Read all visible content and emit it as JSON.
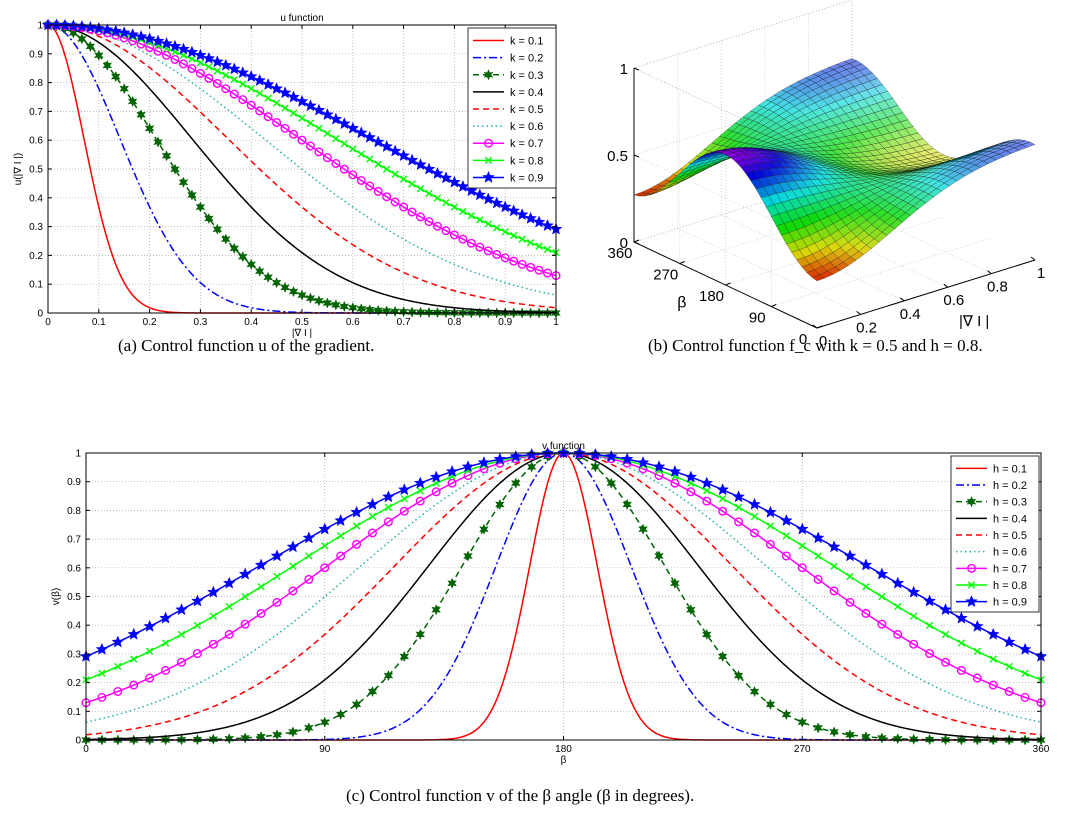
{
  "captions": {
    "a": "(a) Control function u of the gradient.",
    "b": "(b) Control function f_c with k = 0.5 and h = 0.8.",
    "c": "(c) Control function v of the β angle (β in degrees)."
  },
  "chart_data": [
    {
      "id": "a",
      "type": "line",
      "title": "u function",
      "xlabel": "|∇ I |",
      "ylabel": "u(|∇ I |)",
      "xlim": [
        0,
        1
      ],
      "ylim": [
        0,
        1
      ],
      "xticks": [
        "0",
        "0.1",
        "0.2",
        "0.3",
        "0.4",
        "0.5",
        "0.6",
        "0.7",
        "0.8",
        "0.9",
        "1"
      ],
      "yticks": [
        "0",
        "0.1",
        "0.2",
        "0.3",
        "0.4",
        "0.5",
        "0.6",
        "0.7",
        "0.8",
        "0.9",
        "1"
      ],
      "grid": true,
      "legend_position": "top-right",
      "function": "exp(-(x/k)^2)",
      "x": [
        0,
        0.05,
        0.1,
        0.15,
        0.2,
        0.25,
        0.3,
        0.35,
        0.4,
        0.45,
        0.5,
        0.55,
        0.6,
        0.65,
        0.7,
        0.75,
        0.8,
        0.85,
        0.9,
        0.95,
        1
      ],
      "series": [
        {
          "name": "k = 0.1",
          "color": "#ff0000",
          "dash": "solid",
          "marker": "none",
          "values": [
            1,
            0.779,
            0.368,
            0.105,
            0.018,
            0.002,
            0,
            0,
            0,
            0,
            0,
            0,
            0,
            0,
            0,
            0,
            0,
            0,
            0,
            0,
            0
          ]
        },
        {
          "name": "k = 0.2",
          "color": "#0000ff",
          "dash": "dashdot",
          "marker": "none",
          "values": [
            1,
            0.939,
            0.779,
            0.57,
            0.368,
            0.21,
            0.105,
            0.047,
            0.018,
            0.006,
            0.002,
            0.001,
            0,
            0,
            0,
            0,
            0,
            0,
            0,
            0,
            0
          ]
        },
        {
          "name": "k = 0.3",
          "color": "#006400",
          "dash": "dashed",
          "marker": "star6",
          "values": [
            1,
            0.973,
            0.895,
            0.779,
            0.641,
            0.499,
            0.368,
            0.256,
            0.169,
            0.105,
            0.062,
            0.035,
            0.018,
            0.009,
            0.004,
            0.002,
            0.001,
            0,
            0,
            0,
            0
          ]
        },
        {
          "name": "k = 0.4",
          "color": "#000000",
          "dash": "solid",
          "marker": "none",
          "values": [
            1,
            0.985,
            0.939,
            0.869,
            0.779,
            0.677,
            0.57,
            0.465,
            0.368,
            0.282,
            0.21,
            0.151,
            0.105,
            0.071,
            0.047,
            0.03,
            0.018,
            0.011,
            0.006,
            0.004,
            0.002
          ]
        },
        {
          "name": "k = 0.5",
          "color": "#ff0000",
          "dash": "dashed",
          "marker": "none",
          "values": [
            1,
            0.99,
            0.961,
            0.914,
            0.852,
            0.779,
            0.698,
            0.613,
            0.527,
            0.445,
            0.368,
            0.298,
            0.237,
            0.185,
            0.141,
            0.105,
            0.077,
            0.056,
            0.039,
            0.027,
            0.018
          ]
        },
        {
          "name": "k = 0.6",
          "color": "#20b2aa",
          "dash": "dotted",
          "marker": "none",
          "values": [
            1,
            0.993,
            0.973,
            0.939,
            0.895,
            0.841,
            0.779,
            0.712,
            0.641,
            0.57,
            0.499,
            0.432,
            0.368,
            0.309,
            0.256,
            0.21,
            0.169,
            0.134,
            0.105,
            0.082,
            0.062
          ]
        },
        {
          "name": "k = 0.7",
          "color": "#ff00ff",
          "dash": "solid",
          "marker": "circle",
          "values": [
            1,
            0.995,
            0.98,
            0.955,
            0.922,
            0.879,
            0.832,
            0.779,
            0.721,
            0.662,
            0.6,
            0.539,
            0.48,
            0.422,
            0.368,
            0.317,
            0.271,
            0.229,
            0.192,
            0.159,
            0.13
          ]
        },
        {
          "name": "k = 0.8",
          "color": "#00ff00",
          "dash": "solid",
          "marker": "x",
          "values": [
            1,
            0.996,
            0.985,
            0.965,
            0.939,
            0.907,
            0.869,
            0.826,
            0.779,
            0.729,
            0.677,
            0.624,
            0.57,
            0.517,
            0.465,
            0.415,
            0.368,
            0.323,
            0.282,
            0.244,
            0.21
          ]
        },
        {
          "name": "k = 0.9",
          "color": "#0000ff",
          "dash": "solid",
          "marker": "star5",
          "values": [
            1,
            0.997,
            0.988,
            0.973,
            0.952,
            0.926,
            0.895,
            0.86,
            0.821,
            0.779,
            0.734,
            0.688,
            0.641,
            0.594,
            0.546,
            0.499,
            0.454,
            0.41,
            0.368,
            0.328,
            0.291
          ]
        }
      ]
    },
    {
      "id": "b",
      "type": "surface",
      "title": "",
      "xlabel": "|∇ I |",
      "ylabel": "β",
      "zlabel": "",
      "x_range": [
        0,
        1
      ],
      "y_range": [
        0,
        360
      ],
      "z_range": [
        0,
        1
      ],
      "xticks": [
        "0",
        "0.2",
        "0.4",
        "0.6",
        "0.8",
        "1"
      ],
      "yticks": [
        "0",
        "90",
        "180",
        "270",
        "360"
      ],
      "zticks": [
        "0",
        "0.5",
        "1"
      ],
      "grid": true,
      "parameters": {
        "k": 0.5,
        "h": 0.8
      },
      "colormap": "hsv"
    },
    {
      "id": "c",
      "type": "line",
      "title": "v function",
      "xlabel": "β",
      "ylabel": "v(β)",
      "xlim": [
        0,
        360
      ],
      "ylim": [
        0,
        1
      ],
      "xticks": [
        "0",
        "90",
        "180",
        "270",
        "360"
      ],
      "yticks": [
        "0",
        "0.1",
        "0.2",
        "0.3",
        "0.4",
        "0.5",
        "0.6",
        "0.7",
        "0.8",
        "0.9",
        "1"
      ],
      "grid": true,
      "legend_position": "top-right",
      "function": "exp(-((b-180)/180/h)^2)",
      "x": [
        0,
        18,
        36,
        54,
        72,
        90,
        108,
        126,
        144,
        162,
        180,
        198,
        216,
        234,
        252,
        270,
        288,
        306,
        324,
        342,
        360
      ],
      "series": [
        {
          "name": "h = 0.1",
          "color": "#ff0000",
          "dash": "solid",
          "marker": "none",
          "values": [
            0,
            0,
            0,
            0,
            0,
            0,
            0,
            0,
            0.018,
            0.368,
            1,
            0.368,
            0.018,
            0,
            0,
            0,
            0,
            0,
            0,
            0,
            0
          ]
        },
        {
          "name": "h = 0.2",
          "color": "#0000ff",
          "dash": "dashdot",
          "marker": "none",
          "values": [
            0,
            0,
            0,
            0,
            0.001,
            0.002,
            0.018,
            0.105,
            0.368,
            0.779,
            1,
            0.779,
            0.368,
            0.105,
            0.018,
            0.002,
            0.001,
            0,
            0,
            0,
            0
          ]
        },
        {
          "name": "h = 0.3",
          "color": "#006400",
          "dash": "dashed",
          "marker": "star6",
          "values": [
            0,
            0,
            0.001,
            0.004,
            0.018,
            0.062,
            0.169,
            0.368,
            0.641,
            0.895,
            1,
            0.895,
            0.641,
            0.368,
            0.169,
            0.062,
            0.018,
            0.004,
            0.001,
            0,
            0
          ]
        },
        {
          "name": "h = 0.4",
          "color": "#000000",
          "dash": "solid",
          "marker": "none",
          "values": [
            0.002,
            0.006,
            0.018,
            0.047,
            0.105,
            0.21,
            0.368,
            0.57,
            0.779,
            0.939,
            1,
            0.939,
            0.779,
            0.57,
            0.368,
            0.21,
            0.105,
            0.047,
            0.018,
            0.006,
            0.002
          ]
        },
        {
          "name": "h = 0.5",
          "color": "#ff0000",
          "dash": "dashed",
          "marker": "none",
          "values": [
            0.018,
            0.039,
            0.077,
            0.141,
            0.237,
            0.368,
            0.527,
            0.698,
            0.852,
            0.961,
            1,
            0.961,
            0.852,
            0.698,
            0.527,
            0.368,
            0.237,
            0.141,
            0.077,
            0.039,
            0.018
          ]
        },
        {
          "name": "h = 0.6",
          "color": "#20b2aa",
          "dash": "dotted",
          "marker": "none",
          "values": [
            0.062,
            0.105,
            0.169,
            0.256,
            0.368,
            0.499,
            0.641,
            0.779,
            0.895,
            0.973,
            1,
            0.973,
            0.895,
            0.779,
            0.641,
            0.499,
            0.368,
            0.256,
            0.169,
            0.105,
            0.062
          ]
        },
        {
          "name": "h = 0.7",
          "color": "#ff00ff",
          "dash": "solid",
          "marker": "circle",
          "values": [
            0.13,
            0.192,
            0.271,
            0.368,
            0.48,
            0.6,
            0.721,
            0.832,
            0.922,
            0.98,
            1,
            0.98,
            0.922,
            0.832,
            0.721,
            0.6,
            0.48,
            0.368,
            0.271,
            0.192,
            0.13
          ]
        },
        {
          "name": "h = 0.8",
          "color": "#00ff00",
          "dash": "solid",
          "marker": "x",
          "values": [
            0.21,
            0.282,
            0.368,
            0.465,
            0.57,
            0.677,
            0.779,
            0.869,
            0.939,
            0.985,
            1,
            0.985,
            0.939,
            0.869,
            0.779,
            0.677,
            0.57,
            0.465,
            0.368,
            0.282,
            0.21
          ]
        },
        {
          "name": "h = 0.9",
          "color": "#0000ff",
          "dash": "solid",
          "marker": "star5",
          "values": [
            0.291,
            0.368,
            0.454,
            0.546,
            0.641,
            0.734,
            0.821,
            0.895,
            0.952,
            0.988,
            1,
            0.988,
            0.952,
            0.895,
            0.821,
            0.734,
            0.641,
            0.546,
            0.454,
            0.368,
            0.291
          ]
        }
      ]
    }
  ]
}
